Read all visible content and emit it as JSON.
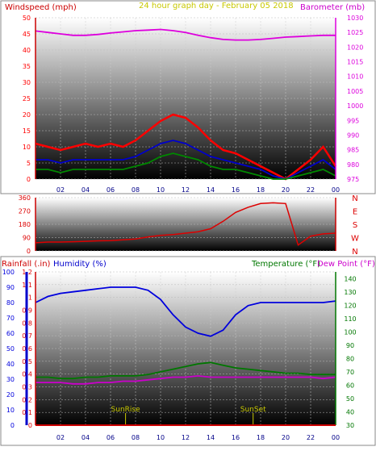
{
  "header": {
    "title": "24 hour graph day - February 05 2018"
  },
  "colors": {
    "wind": "#ff0000",
    "gust": "#ff0000",
    "wind_avg": "#0000cc",
    "wind_low": "#008800",
    "barometer": "#dd00dd",
    "direction": "#dd0000",
    "humidity": "#0000dd",
    "temperature": "#007700",
    "dewpoint": "#cc00cc",
    "rain": "#dd0000",
    "sun_marker": "#c8c800"
  },
  "chart_data": [
    {
      "type": "line",
      "name": "wind-barometer",
      "left_label": "Windspeed (mph)",
      "right_label": "Barometer (mb)",
      "x_ticks": [
        "02",
        "04",
        "06",
        "08",
        "10",
        "12",
        "14",
        "16",
        "18",
        "20",
        "22",
        "00"
      ],
      "x": [
        0,
        1,
        2,
        3,
        4,
        5,
        6,
        7,
        8,
        9,
        10,
        11,
        12,
        13,
        14,
        15,
        16,
        17,
        18,
        19,
        20,
        21,
        22,
        23,
        24
      ],
      "ylim_left": [
        0,
        50
      ],
      "yticks_left": [
        0,
        5,
        10,
        15,
        20,
        25,
        30,
        35,
        40,
        45,
        50
      ],
      "ylim_right": [
        975,
        1030
      ],
      "yticks_right": [
        975,
        980,
        985,
        990,
        995,
        1000,
        1005,
        1010,
        1015,
        1020,
        1025,
        1030
      ],
      "series": [
        {
          "key": "gust",
          "axis": "left",
          "values": [
            11,
            10,
            9,
            10,
            11,
            10,
            11,
            10,
            12,
            15,
            18,
            20,
            19,
            16,
            12,
            9,
            8,
            6,
            4,
            2,
            0,
            3,
            6,
            10,
            4
          ]
        },
        {
          "key": "wind_avg",
          "axis": "left",
          "values": [
            6,
            6,
            5,
            6,
            6,
            6,
            6,
            6,
            7,
            9,
            11,
            12,
            11,
            9,
            7,
            6,
            5,
            4,
            3,
            1,
            0,
            2,
            4,
            6,
            3
          ]
        },
        {
          "key": "wind_low",
          "axis": "left",
          "values": [
            3,
            3,
            2,
            3,
            3,
            3,
            3,
            3,
            4,
            5,
            7,
            8,
            7,
            6,
            4,
            3,
            3,
            2,
            1,
            0,
            0,
            1,
            2,
            3,
            1
          ]
        },
        {
          "key": "barometer",
          "axis": "right",
          "values": [
            1025.5,
            1025,
            1024.5,
            1024,
            1024,
            1024.3,
            1024.8,
            1025.2,
            1025.6,
            1025.8,
            1026,
            1025.6,
            1025,
            1024,
            1023.2,
            1022.6,
            1022.4,
            1022.4,
            1022.6,
            1023,
            1023.4,
            1023.6,
            1023.8,
            1024,
            1024
          ]
        }
      ]
    },
    {
      "type": "line",
      "name": "wind-direction",
      "yticks_left": [
        0,
        90,
        180,
        270,
        360
      ],
      "ylim": [
        0,
        360
      ],
      "right_labels": [
        "N",
        "W",
        "S",
        "E",
        "N"
      ],
      "x": [
        0,
        1,
        2,
        3,
        4,
        5,
        6,
        7,
        8,
        9,
        10,
        11,
        12,
        13,
        14,
        15,
        16,
        17,
        18,
        19,
        20,
        21,
        22,
        23,
        24
      ],
      "series": [
        {
          "key": "direction",
          "values": [
            55,
            60,
            60,
            62,
            65,
            68,
            70,
            75,
            80,
            95,
            105,
            110,
            120,
            130,
            150,
            200,
            260,
            295,
            320,
            325,
            320,
            40,
            100,
            115,
            120
          ]
        }
      ]
    },
    {
      "type": "line",
      "name": "humidity-temperature",
      "left_label": "Rainfall (.in)",
      "humidity_label": "Humidity (%)",
      "temp_label": "Temperature (°F)",
      "dew_label": "Dew Point (°F)",
      "x_ticks": [
        "02",
        "04",
        "06",
        "08",
        "10",
        "12",
        "14",
        "16",
        "18",
        "20",
        "22",
        "00"
      ],
      "x": [
        0,
        1,
        2,
        3,
        4,
        5,
        6,
        7,
        8,
        9,
        10,
        11,
        12,
        13,
        14,
        15,
        16,
        17,
        18,
        19,
        20,
        21,
        22,
        23,
        24
      ],
      "yticks_rain": [
        "0",
        "0.1",
        "0.2",
        "0.3",
        "0.4",
        "0.5",
        "0.6",
        "0.7",
        "0.8",
        "0.9",
        "1",
        "1.1",
        "1.2"
      ],
      "ylim_rain": [
        0,
        1.2
      ],
      "yticks_humidity": [
        0,
        10,
        20,
        30,
        40,
        50,
        60,
        70,
        80,
        90,
        100
      ],
      "ylim_humidity": [
        0,
        100
      ],
      "yticks_temp": [
        30,
        40,
        50,
        60,
        70,
        80,
        90,
        100,
        110,
        120,
        130,
        140
      ],
      "ylim_temp": [
        30,
        145
      ],
      "series": [
        {
          "key": "humidity",
          "axis": "humidity",
          "values": [
            80,
            84,
            86,
            87,
            88,
            89,
            90,
            90,
            90,
            88,
            82,
            72,
            64,
            60,
            58,
            62,
            72,
            78,
            80,
            80,
            80,
            80,
            80,
            80,
            81
          ]
        },
        {
          "key": "temperature",
          "axis": "temp",
          "values": [
            66,
            66,
            65,
            65,
            66,
            66,
            67,
            67,
            67,
            68,
            70,
            72,
            74,
            76,
            77,
            75,
            73,
            72,
            71,
            70,
            69,
            69,
            68,
            68,
            68
          ]
        },
        {
          "key": "dewpoint",
          "axis": "temp",
          "values": [
            62,
            62,
            62,
            61,
            61,
            62,
            62,
            63,
            63,
            64,
            65,
            66,
            66,
            67,
            66,
            66,
            66,
            66,
            66,
            66,
            66,
            66,
            66,
            65,
            66
          ]
        },
        {
          "key": "rain",
          "axis": "rain",
          "values": [
            0,
            0,
            0,
            0,
            0,
            0,
            0,
            0,
            0,
            0,
            0,
            0,
            0,
            0,
            0,
            0,
            0,
            0,
            0,
            0,
            0,
            0,
            0,
            0,
            0
          ]
        }
      ],
      "markers": [
        {
          "label": "SunRise",
          "x": 7.2
        },
        {
          "label": "SunSet",
          "x": 17.4
        }
      ]
    }
  ]
}
